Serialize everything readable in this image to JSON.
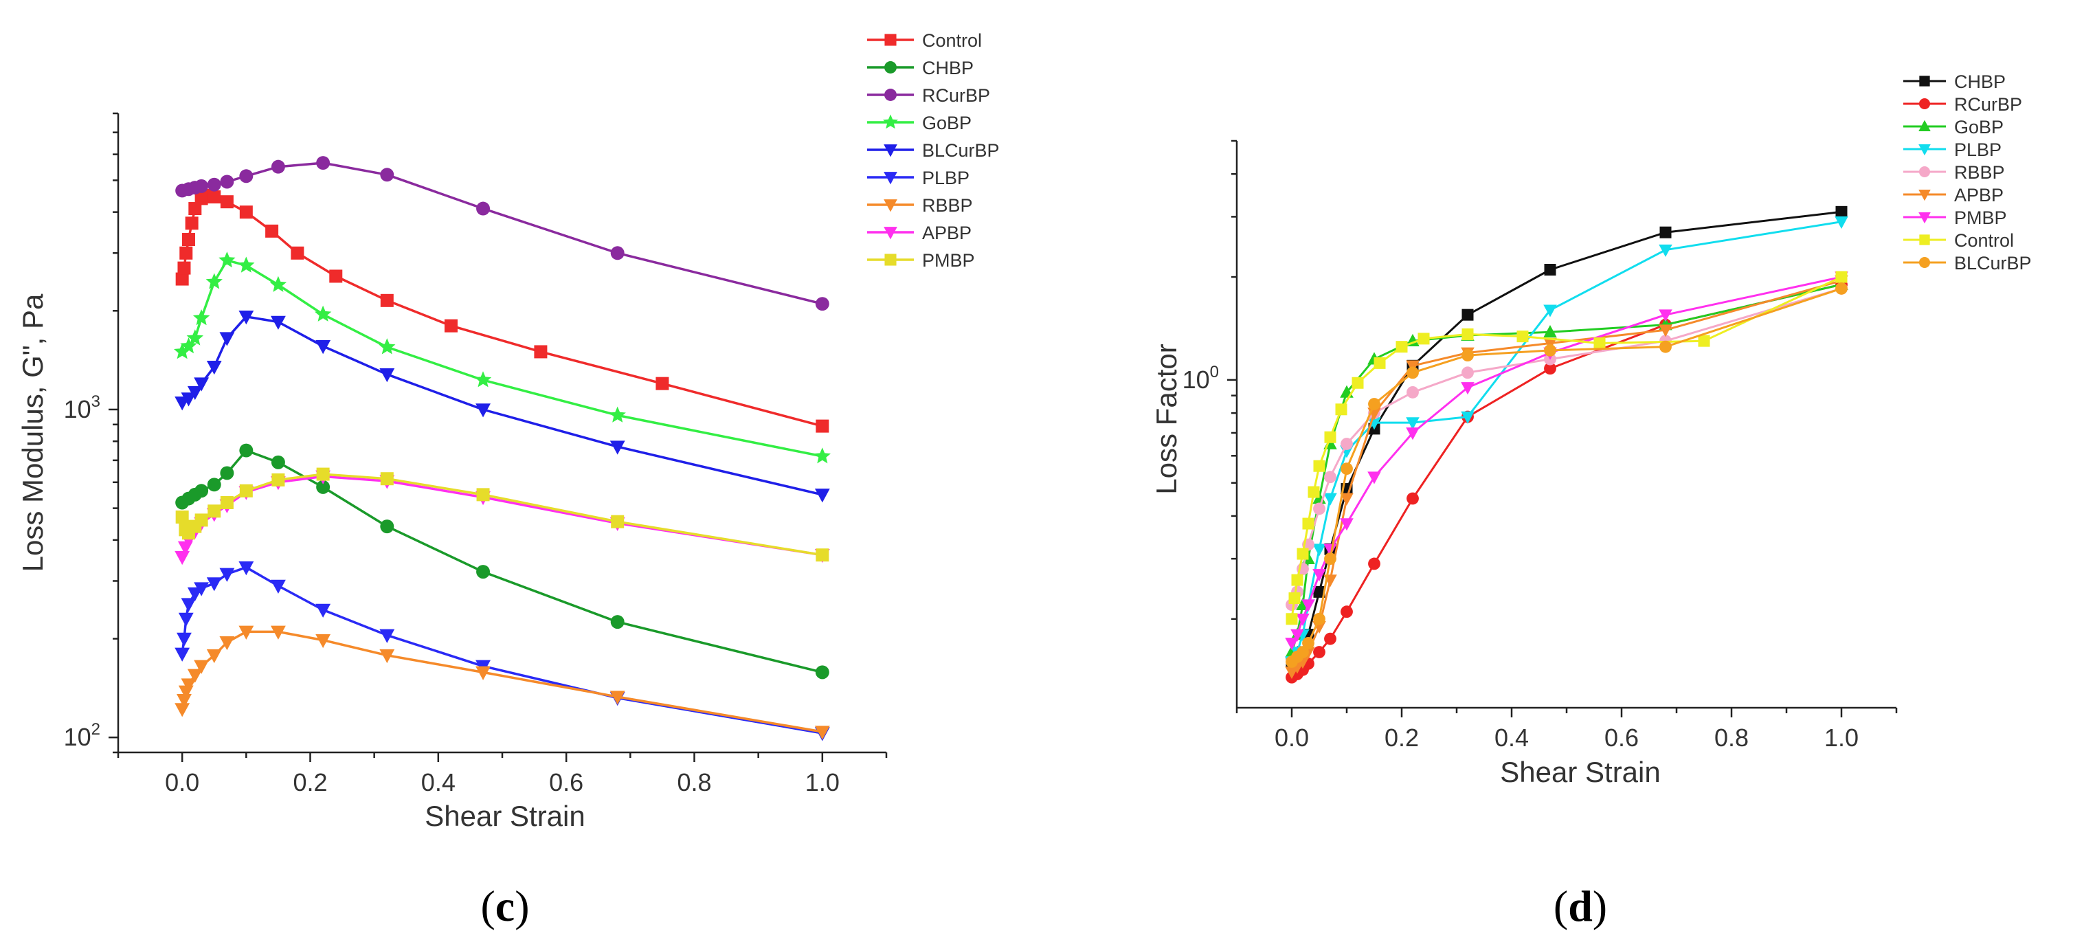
{
  "chart_data": [
    {
      "type": "line",
      "panel": "c",
      "caption": {
        "open": "(",
        "letter": "c",
        "close": ")"
      },
      "xlabel": "Shear Strain",
      "ylabel": "Loss Modulus, G\", Pa",
      "xscale": "linear",
      "yscale": "log",
      "xlim": [
        -0.1,
        1.1
      ],
      "ylim": [
        90,
        8000
      ],
      "xticks": [
        0.0,
        0.2,
        0.4,
        0.6,
        0.8,
        1.0
      ],
      "xtick_labels": [
        "0.0",
        "0.2",
        "0.4",
        "0.6",
        "0.8",
        "1.0"
      ],
      "yticks": [
        100,
        1000
      ],
      "ytick_labels": [
        {
          "base": "10",
          "exp": "2"
        },
        {
          "base": "10",
          "exp": "3"
        }
      ],
      "legend_position": "top-right",
      "series": [
        {
          "name": "Control",
          "color": "#ef2b2b",
          "marker": "square",
          "x": [
            0.0,
            0.003,
            0.006,
            0.01,
            0.015,
            0.02,
            0.03,
            0.04,
            0.05,
            0.07,
            0.1,
            0.14,
            0.18,
            0.24,
            0.32,
            0.42,
            0.56,
            0.75,
            1.0
          ],
          "y": [
            2500,
            2700,
            3000,
            3300,
            3700,
            4100,
            4400,
            4500,
            4450,
            4300,
            4000,
            3500,
            3000,
            2550,
            2150,
            1800,
            1500,
            1200,
            890
          ]
        },
        {
          "name": "CHBP",
          "color": "#1a9a2a",
          "marker": "circle",
          "x": [
            0.0,
            0.01,
            0.02,
            0.03,
            0.05,
            0.07,
            0.1,
            0.15,
            0.22,
            0.32,
            0.47,
            0.68,
            1.0
          ],
          "y": [
            520,
            535,
            550,
            565,
            590,
            640,
            750,
            690,
            580,
            440,
            320,
            225,
            158
          ]
        },
        {
          "name": "RCurBP",
          "color": "#8a2a9e",
          "marker": "circle",
          "x": [
            0.0,
            0.01,
            0.02,
            0.03,
            0.05,
            0.07,
            0.1,
            0.15,
            0.22,
            0.32,
            0.47,
            0.68,
            1.0
          ],
          "y": [
            4650,
            4700,
            4750,
            4800,
            4850,
            4950,
            5150,
            5500,
            5650,
            5200,
            4100,
            3000,
            2100
          ]
        },
        {
          "name": "GoBP",
          "color": "#33ee44",
          "marker": "star",
          "x": [
            0.0,
            0.01,
            0.02,
            0.03,
            0.05,
            0.07,
            0.1,
            0.15,
            0.22,
            0.32,
            0.47,
            0.68,
            1.0
          ],
          "y": [
            1500,
            1560,
            1650,
            1900,
            2450,
            2850,
            2750,
            2400,
            1950,
            1550,
            1230,
            960,
            720
          ]
        },
        {
          "name": "BLCurBP",
          "color": "#1f1fe8",
          "marker": "triangle-down",
          "x": [
            0.0,
            0.01,
            0.02,
            0.03,
            0.05,
            0.07,
            0.1,
            0.15,
            0.22,
            0.32,
            0.47,
            0.68,
            1.0
          ],
          "y": [
            1050,
            1080,
            1130,
            1200,
            1350,
            1650,
            1920,
            1850,
            1560,
            1280,
            1000,
            770,
            550
          ]
        },
        {
          "name": "PLBP",
          "color": "#2a2af5",
          "marker": "triangle-down",
          "x": [
            0.0,
            0.003,
            0.006,
            0.01,
            0.02,
            0.03,
            0.05,
            0.07,
            0.1,
            0.15,
            0.22,
            0.32,
            0.47,
            0.68,
            1.0
          ],
          "y": [
            180,
            200,
            230,
            255,
            275,
            285,
            295,
            315,
            330,
            290,
            245,
            205,
            165,
            132,
            103
          ]
        },
        {
          "name": "RBBP",
          "color": "#f58a2a",
          "marker": "triangle-down",
          "x": [
            0.0,
            0.003,
            0.006,
            0.01,
            0.02,
            0.03,
            0.05,
            0.07,
            0.1,
            0.15,
            0.22,
            0.32,
            0.47,
            0.68,
            1.0
          ],
          "y": [
            122,
            130,
            138,
            145,
            155,
            165,
            178,
            195,
            210,
            210,
            198,
            178,
            158,
            133,
            104
          ]
        },
        {
          "name": "APBP",
          "color": "#ff30ee",
          "marker": "triangle-down",
          "x": [
            0.0,
            0.005,
            0.01,
            0.02,
            0.03,
            0.05,
            0.07,
            0.1,
            0.15,
            0.22,
            0.32,
            0.47,
            0.68,
            1.0
          ],
          "y": [
            355,
            380,
            400,
            425,
            450,
            480,
            510,
            560,
            600,
            625,
            605,
            540,
            450,
            360
          ]
        },
        {
          "name": "PMBP",
          "color": "#e6dc2a",
          "marker": "square",
          "x": [
            0.0,
            0.005,
            0.01,
            0.02,
            0.03,
            0.05,
            0.07,
            0.1,
            0.15,
            0.22,
            0.32,
            0.47,
            0.68,
            1.0
          ],
          "y": [
            470,
            430,
            420,
            440,
            460,
            490,
            520,
            565,
            610,
            635,
            615,
            550,
            455,
            360
          ]
        }
      ]
    },
    {
      "type": "line",
      "panel": "d",
      "caption": {
        "open": "(",
        "letter": "d",
        "close": ")"
      },
      "xlabel": "Shear Strain",
      "ylabel": "Loss Factor",
      "xscale": "linear",
      "yscale": "log",
      "xlim": [
        -0.1,
        1.1
      ],
      "ylim": [
        0.11,
        5.0
      ],
      "xticks": [
        0.0,
        0.2,
        0.4,
        0.6,
        0.8,
        1.0
      ],
      "xtick_labels": [
        "0.0",
        "0.2",
        "0.4",
        "0.6",
        "0.8",
        "1.0"
      ],
      "yticks": [
        1.0
      ],
      "ytick_labels": [
        {
          "base": "10",
          "exp": "0"
        }
      ],
      "legend_position": "top-right",
      "series": [
        {
          "name": "CHBP",
          "color": "#111111",
          "marker": "square",
          "x": [
            0.0,
            0.01,
            0.02,
            0.03,
            0.05,
            0.07,
            0.1,
            0.15,
            0.22,
            0.32,
            0.47,
            0.68,
            1.0
          ],
          "y": [
            0.15,
            0.155,
            0.16,
            0.18,
            0.24,
            0.32,
            0.48,
            0.72,
            1.1,
            1.55,
            2.1,
            2.7,
            3.1
          ]
        },
        {
          "name": "RCurBP",
          "color": "#ee2222",
          "marker": "circle",
          "x": [
            0.0,
            0.01,
            0.02,
            0.03,
            0.05,
            0.07,
            0.1,
            0.15,
            0.22,
            0.32,
            0.47,
            0.68,
            1.0
          ],
          "y": [
            0.135,
            0.138,
            0.142,
            0.148,
            0.16,
            0.175,
            0.21,
            0.29,
            0.45,
            0.78,
            1.08,
            1.45,
            1.9
          ]
        },
        {
          "name": "GoBP",
          "color": "#22cc22",
          "marker": "triangle-up",
          "x": [
            0.0,
            0.01,
            0.02,
            0.03,
            0.05,
            0.07,
            0.1,
            0.15,
            0.22,
            0.32,
            0.47,
            0.68,
            1.0
          ],
          "y": [
            0.16,
            0.18,
            0.22,
            0.3,
            0.45,
            0.65,
            0.92,
            1.15,
            1.3,
            1.35,
            1.38,
            1.45,
            1.9
          ]
        },
        {
          "name": "PLBP",
          "color": "#11ddee",
          "marker": "triangle-down",
          "x": [
            0.0,
            0.01,
            0.02,
            0.03,
            0.05,
            0.07,
            0.1,
            0.15,
            0.22,
            0.32,
            0.47,
            0.68,
            1.0
          ],
          "y": [
            0.15,
            0.16,
            0.18,
            0.22,
            0.32,
            0.45,
            0.62,
            0.75,
            0.75,
            0.78,
            1.6,
            2.4,
            2.9
          ]
        },
        {
          "name": "RBBP",
          "color": "#f5a8c8",
          "marker": "circle",
          "x": [
            0.0,
            0.01,
            0.02,
            0.03,
            0.05,
            0.07,
            0.1,
            0.15,
            0.22,
            0.32,
            0.47,
            0.68,
            1.0
          ],
          "y": [
            0.22,
            0.24,
            0.28,
            0.33,
            0.42,
            0.52,
            0.65,
            0.8,
            0.92,
            1.05,
            1.15,
            1.3,
            1.85
          ]
        },
        {
          "name": "APBP",
          "color": "#f58a2a",
          "marker": "triangle-down",
          "x": [
            0.0,
            0.01,
            0.02,
            0.03,
            0.05,
            0.07,
            0.1,
            0.15,
            0.22,
            0.32,
            0.47,
            0.68,
            1.0
          ],
          "y": [
            0.14,
            0.145,
            0.15,
            0.16,
            0.19,
            0.26,
            0.45,
            0.8,
            1.1,
            1.2,
            1.28,
            1.4,
            1.95
          ]
        },
        {
          "name": "PMBP",
          "color": "#ff30ee",
          "marker": "triangle-down",
          "x": [
            0.0,
            0.01,
            0.02,
            0.03,
            0.05,
            0.07,
            0.1,
            0.15,
            0.22,
            0.32,
            0.47,
            0.68,
            1.0
          ],
          "y": [
            0.17,
            0.18,
            0.2,
            0.22,
            0.27,
            0.32,
            0.38,
            0.52,
            0.7,
            0.95,
            1.2,
            1.55,
            2.0
          ]
        },
        {
          "name": "Control",
          "color": "#eeee22",
          "marker": "square",
          "x": [
            0.0,
            0.005,
            0.01,
            0.02,
            0.03,
            0.04,
            0.05,
            0.07,
            0.09,
            0.12,
            0.16,
            0.2,
            0.24,
            0.32,
            0.42,
            0.56,
            0.75,
            1.0
          ],
          "y": [
            0.2,
            0.23,
            0.26,
            0.31,
            0.38,
            0.47,
            0.56,
            0.68,
            0.82,
            0.98,
            1.12,
            1.25,
            1.32,
            1.36,
            1.34,
            1.28,
            1.3,
            2.0
          ]
        },
        {
          "name": "BLCurBP",
          "color": "#f5a020",
          "marker": "circle",
          "x": [
            0.0,
            0.01,
            0.02,
            0.03,
            0.05,
            0.07,
            0.1,
            0.15,
            0.22,
            0.32,
            0.47,
            0.68,
            1.0
          ],
          "y": [
            0.15,
            0.155,
            0.16,
            0.17,
            0.2,
            0.3,
            0.55,
            0.85,
            1.05,
            1.18,
            1.22,
            1.25,
            1.85
          ]
        }
      ]
    }
  ]
}
